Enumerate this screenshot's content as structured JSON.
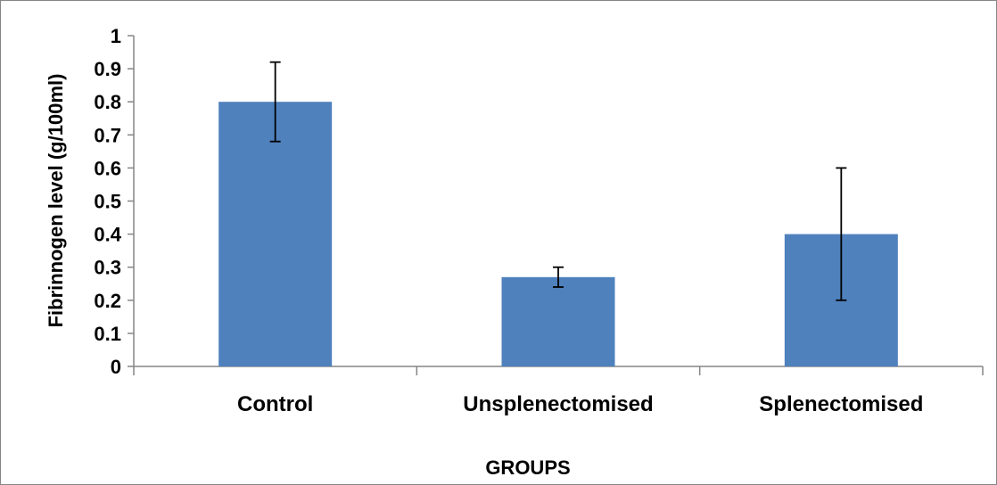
{
  "chart_data": {
    "type": "bar",
    "categories": [
      "Control",
      "Unsplenectomised",
      "Splenectomised"
    ],
    "values": [
      0.8,
      0.27,
      0.4
    ],
    "error_bars": [
      {
        "low": 0.68,
        "high": 0.92
      },
      {
        "low": 0.24,
        "high": 0.3
      },
      {
        "low": 0.2,
        "high": 0.6
      }
    ],
    "xlabel": "GROUPS",
    "ylabel": "Fibrinnogen level (g/100ml)",
    "ylim": [
      0,
      1
    ],
    "yticks": [
      "0",
      "0.1",
      "0.2",
      "0.3",
      "0.4",
      "0.5",
      "0.6",
      "0.7",
      "0.8",
      "0.9",
      "1"
    ],
    "grid": false,
    "legend": "none",
    "bar_color": "#4F81BD",
    "axis_color": "#868686",
    "error_bar_color": "#000000"
  }
}
